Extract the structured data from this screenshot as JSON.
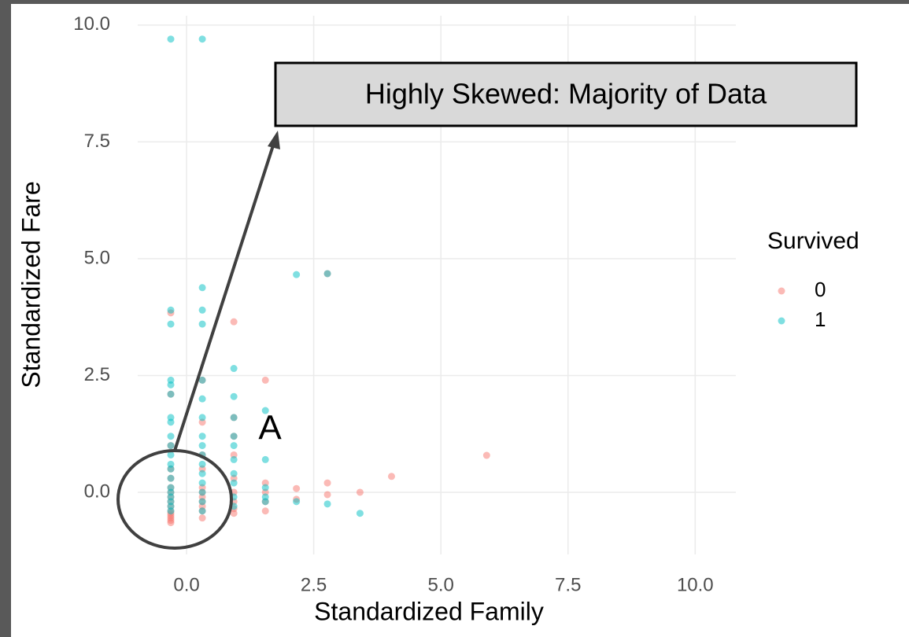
{
  "chart_data": {
    "type": "scatter",
    "x_label": "Standardized Family",
    "y_label": "Standardized Fare",
    "legend_title": "Survived",
    "legend_position": "right",
    "grid": true,
    "annotations": [
      "Highly Skewed: Majority of Data",
      "A"
    ],
    "xlim": [
      -0.96,
      10.8
    ],
    "ylim": [
      -1.33,
      10.2
    ],
    "xticks": [
      {
        "value": 0,
        "label": "0.0"
      },
      2.5,
      {
        "value": 5,
        "label": "5.0"
      },
      7.5,
      {
        "value": 10,
        "label": "10.0"
      }
    ],
    "yticks": [
      {
        "value": 0,
        "label": "0.0"
      },
      2.5,
      {
        "value": 5,
        "label": "5.0"
      },
      7.5,
      {
        "value": 10,
        "label": "10.0"
      }
    ],
    "series": [
      {
        "name": "0",
        "color": "#F8766D",
        "x": [
          -0.31,
          -0.31,
          -0.31,
          -0.31,
          -0.31,
          -0.31,
          -0.31,
          -0.31,
          -0.31,
          -0.31,
          -0.31,
          -0.31,
          -0.31,
          -0.31,
          -0.31,
          -0.31,
          0.31,
          0.31,
          0.31,
          0.31,
          0.31,
          0.31,
          0.31,
          0.31,
          0.31,
          0.31,
          0.31,
          0.93,
          0.93,
          0.93,
          0.93,
          0.93,
          0.93,
          0.93,
          0.93,
          0.93,
          1.55,
          1.55,
          1.55,
          1.55,
          1.55,
          2.16,
          2.16,
          2.77,
          2.77,
          2.77,
          3.41,
          4.03,
          5.9
        ],
        "values": [
          -0.65,
          -0.6,
          -0.55,
          -0.5,
          -0.45,
          -0.4,
          -0.3,
          -0.2,
          -0.1,
          0,
          0.1,
          0.3,
          0.5,
          1.0,
          2.1,
          3.84,
          -0.55,
          -0.4,
          -0.3,
          -0.2,
          -0.1,
          0,
          0.1,
          0.5,
          0.8,
          1.5,
          2.4,
          -0.45,
          -0.35,
          -0.2,
          0,
          0.3,
          0.8,
          1.2,
          1.6,
          3.65,
          -0.4,
          -0.2,
          0,
          0.2,
          2.4,
          -0.15,
          0.08,
          -0.05,
          0.2,
          4.68,
          0,
          0.34,
          0.79
        ]
      },
      {
        "name": "1",
        "color": "#00BFC4",
        "x": [
          -0.31,
          -0.31,
          -0.31,
          -0.31,
          -0.31,
          -0.31,
          -0.31,
          -0.31,
          -0.31,
          -0.31,
          -0.31,
          -0.31,
          -0.31,
          -0.31,
          -0.31,
          -0.31,
          -0.31,
          -0.31,
          -0.31,
          -0.31,
          0.31,
          0.31,
          0.31,
          0.31,
          0.31,
          0.31,
          0.31,
          0.31,
          0.31,
          0.31,
          0.31,
          0.31,
          0.31,
          0.31,
          0.31,
          0.31,
          0.93,
          0.93,
          0.93,
          0.93,
          0.93,
          0.93,
          0.93,
          0.93,
          0.93,
          0.93,
          1.55,
          1.55,
          1.55,
          1.55,
          1.55,
          2.16,
          2.16,
          2.77,
          2.77,
          3.41
        ],
        "values": [
          -0.4,
          -0.3,
          -0.2,
          -0.1,
          0,
          0.1,
          0.3,
          0.5,
          0.6,
          0.8,
          1.0,
          1.2,
          1.5,
          1.6,
          2.1,
          2.3,
          2.4,
          3.6,
          3.9,
          9.7,
          -0.4,
          -0.2,
          0,
          0.2,
          0.4,
          0.6,
          0.8,
          1.0,
          1.2,
          1.6,
          2.0,
          2.4,
          3.6,
          3.9,
          4.38,
          9.7,
          -0.3,
          -0.1,
          0.2,
          0.4,
          0.7,
          1.0,
          1.2,
          1.6,
          2.05,
          2.65,
          -0.2,
          -0.1,
          0.1,
          0.7,
          1.75,
          -0.2,
          4.66,
          -0.25,
          4.68,
          -0.45
        ]
      }
    ]
  }
}
